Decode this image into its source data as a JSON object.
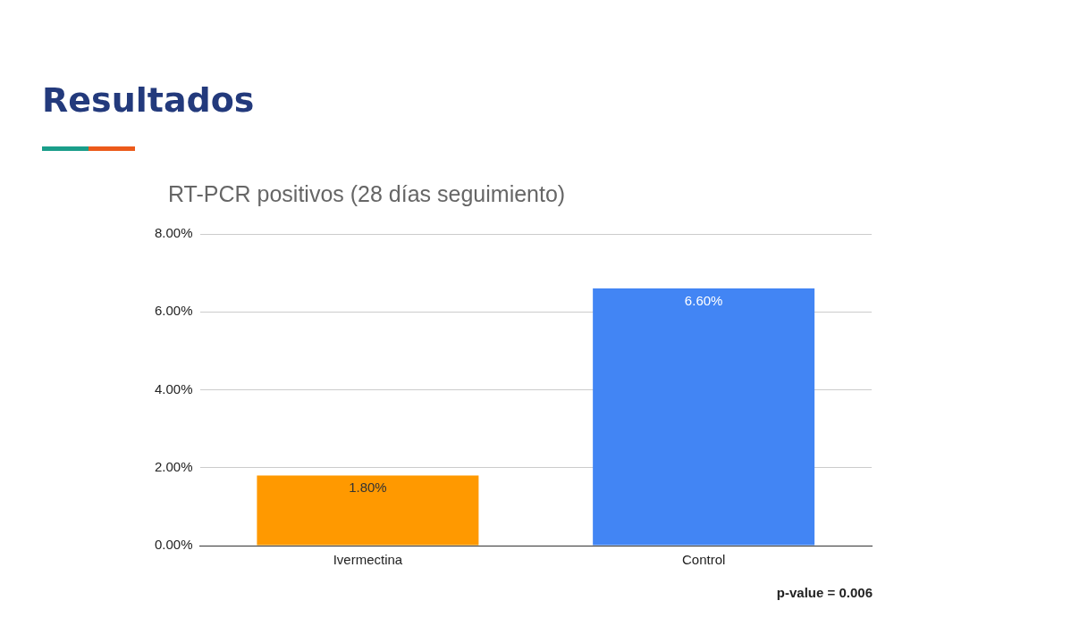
{
  "chart_data": {
    "type": "bar",
    "title": "Resultados",
    "subtitle": "RT-PCR positivos (28 días seguimiento)",
    "categories": [
      "Ivermectina",
      "Control"
    ],
    "values": [
      1.8,
      6.6
    ],
    "colors": [
      "#ff9900",
      "#4285f4"
    ],
    "value_labels": [
      "1.80%",
      "6.60%"
    ],
    "ylim": [
      0,
      8
    ],
    "yticks": [
      {
        "value": 0,
        "label": "0.00%"
      },
      {
        "value": 2,
        "label": "2.00%"
      },
      {
        "value": 4,
        "label": "4.00%"
      },
      {
        "value": 6,
        "label": "6.00%"
      },
      {
        "value": 8,
        "label": "8.00%"
      }
    ],
    "grid": "y",
    "legend": false,
    "annotations": [
      "p-value = 0.006"
    ]
  }
}
